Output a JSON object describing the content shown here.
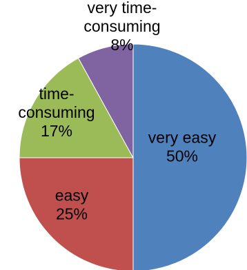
{
  "chart_data": {
    "type": "pie",
    "slices": [
      {
        "key": "very-easy",
        "label_lines": [
          "very easy"
        ],
        "value": 50,
        "value_text": "50%",
        "color": "#4F81BD"
      },
      {
        "key": "easy",
        "label_lines": [
          "easy"
        ],
        "value": 25,
        "value_text": "25%",
        "color": "#C0504D"
      },
      {
        "key": "time-consuming",
        "label_lines": [
          "time-",
          "consuming"
        ],
        "value": 17,
        "value_text": "17%",
        "color": "#9BBB59"
      },
      {
        "key": "very-time-consuming",
        "label_lines": [
          "very time-",
          "consuming"
        ],
        "value": 8,
        "value_text": "8%",
        "color": "#8064A2"
      }
    ]
  }
}
